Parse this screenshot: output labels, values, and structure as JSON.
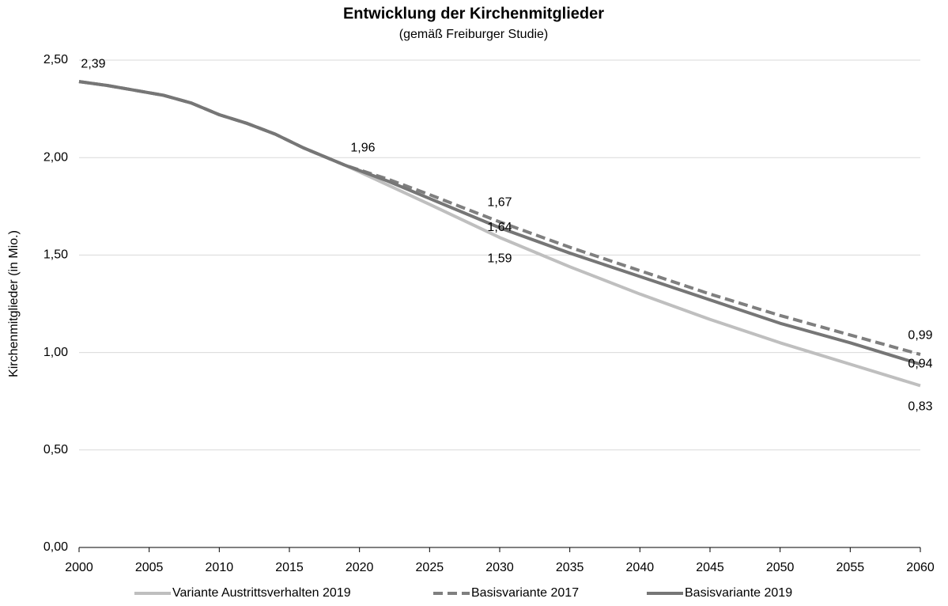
{
  "chart_data": {
    "type": "line",
    "title": "Entwicklung der Kirchenmitglieder",
    "subtitle": "(gemäß Freiburger Studie)",
    "y_label": "Kirchenmitglieder (in Mio.)",
    "x": [
      2000,
      2002,
      2004,
      2006,
      2008,
      2010,
      2012,
      2014,
      2016,
      2019,
      2022,
      2025,
      2030,
      2035,
      2040,
      2045,
      2050,
      2055,
      2060
    ],
    "xlim": [
      2000,
      2060
    ],
    "xticks": [
      2000,
      2005,
      2010,
      2015,
      2020,
      2025,
      2030,
      2035,
      2040,
      2045,
      2050,
      2055,
      2060
    ],
    "ylim": [
      0,
      2.5
    ],
    "yticks": [
      {
        "value": 0,
        "label": "0,00"
      },
      {
        "value": 0.5,
        "label": "0,50"
      },
      {
        "value": 1,
        "label": "1,00"
      },
      {
        "value": 1.5,
        "label": "1,50"
      },
      {
        "value": 2,
        "label": "2,00"
      },
      {
        "value": 2.5,
        "label": "2,50"
      }
    ],
    "grid": true,
    "legend": "bottom",
    "series": [
      {
        "name": "Variante Austrittsverhalten 2019",
        "color": "#bfbfbf",
        "dash": false,
        "values": [
          2.39,
          2.37,
          2.345,
          2.32,
          2.28,
          2.22,
          2.175,
          2.12,
          2.05,
          1.96,
          1.86,
          1.76,
          1.59,
          1.44,
          1.3,
          1.17,
          1.05,
          0.94,
          0.83
        ],
        "value_labels": [
          "2,39",
          null,
          null,
          null,
          null,
          null,
          null,
          null,
          null,
          "1,96",
          null,
          null,
          "1,59",
          null,
          null,
          null,
          null,
          null,
          "0,83"
        ]
      },
      {
        "name": "Basisvariante 2017",
        "color": "#7f7f7f",
        "dash": true,
        "values": [
          2.39,
          2.37,
          2.345,
          2.32,
          2.28,
          2.22,
          2.175,
          2.12,
          2.05,
          1.96,
          1.89,
          1.81,
          1.67,
          1.54,
          1.42,
          1.3,
          1.19,
          1.09,
          0.99
        ],
        "value_labels": [
          null,
          null,
          null,
          null,
          null,
          null,
          null,
          null,
          null,
          null,
          null,
          null,
          "1,67",
          null,
          null,
          null,
          null,
          null,
          "0,99"
        ]
      },
      {
        "name": "Basisvariante 2019",
        "color": "#767676",
        "dash": false,
        "values": [
          2.39,
          2.37,
          2.345,
          2.32,
          2.28,
          2.22,
          2.175,
          2.12,
          2.05,
          1.96,
          1.88,
          1.79,
          1.64,
          1.51,
          1.39,
          1.27,
          1.15,
          1.05,
          0.94
        ],
        "value_labels": [
          null,
          null,
          null,
          null,
          null,
          null,
          null,
          null,
          null,
          null,
          null,
          null,
          "1,64",
          null,
          null,
          null,
          null,
          null,
          "0,94"
        ]
      }
    ]
  }
}
